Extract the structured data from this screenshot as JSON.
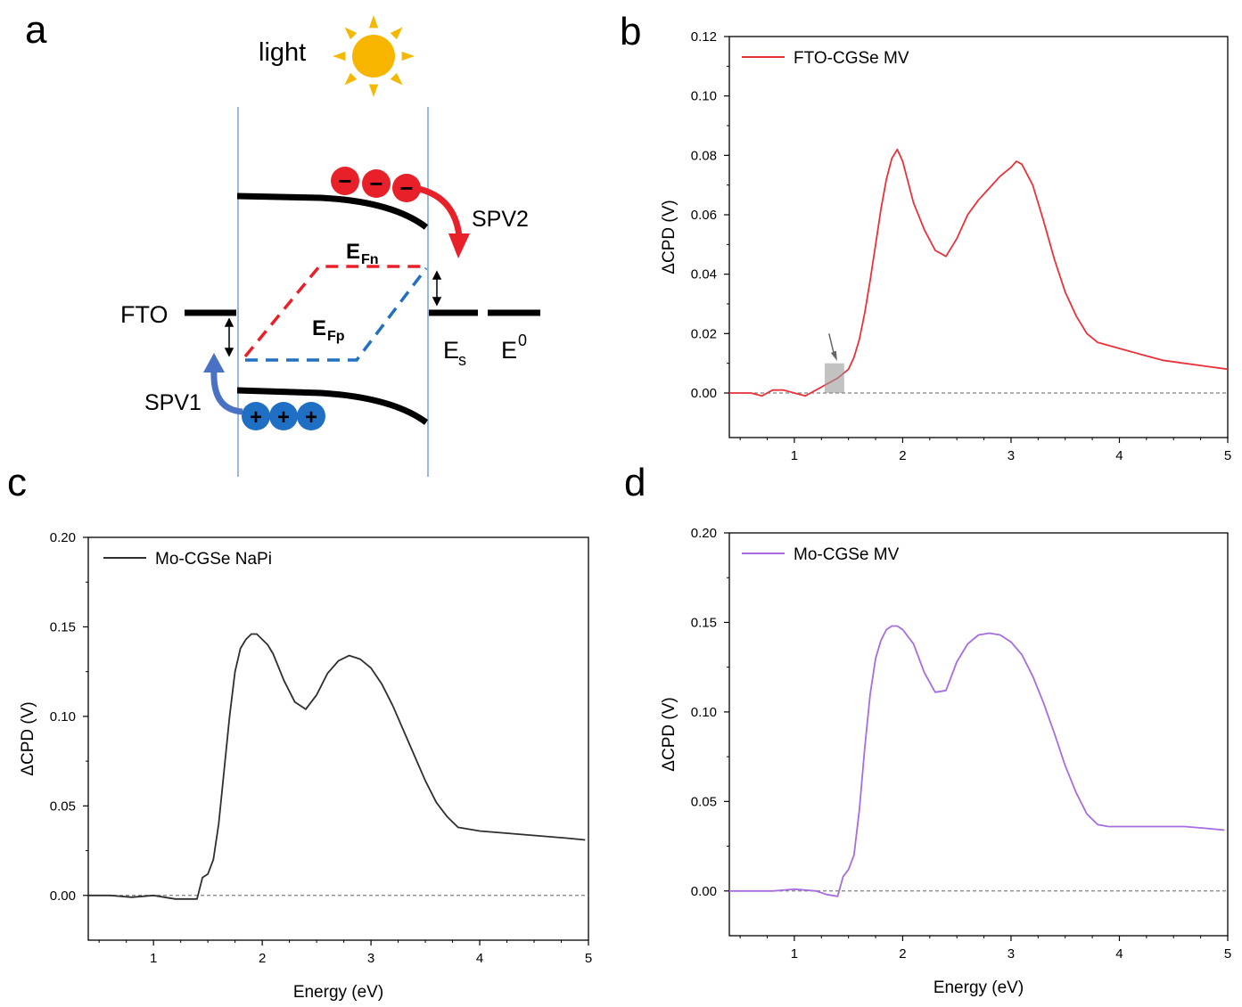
{
  "panels": {
    "a": "a",
    "b": "b",
    "c": "c",
    "d": "d"
  },
  "diagram": {
    "light": "light",
    "spv1": "SPV1",
    "spv2": "SPV2",
    "fto": "FTO",
    "efn_main": "E",
    "efn_sub": "Fn",
    "efp_main": "E",
    "efp_sub": "Fp",
    "es_main": "E",
    "es_sub": "s",
    "e0_main": "E",
    "e0_sup": "0",
    "minus": "−",
    "plus": "+",
    "colors": {
      "electron": "#e8202a",
      "hole": "#1f6fc5",
      "efn_line": "#e8202a",
      "efp_line": "#2470c0",
      "sun": "#f7b500",
      "sun_rays": "#f5b800",
      "spv1_arrow": "#4a72c4",
      "spv2_arrow": "#e8202a",
      "vline": "#7aa0d6"
    }
  },
  "chart_data": [
    {
      "panel": "b",
      "type": "line",
      "xlabel": "",
      "ylabel": "ΔCPD (V)",
      "xlim": [
        0.4,
        5.0
      ],
      "ylim": [
        -0.015,
        0.12
      ],
      "xticks": [
        "1",
        "2",
        "3",
        "4",
        "5"
      ],
      "yticks": [
        "0.00",
        "0.02",
        "0.04",
        "0.06",
        "0.08",
        "0.10",
        "0.12"
      ],
      "color": "#e8323a",
      "series": [
        {
          "name": "FTO-CGSe MV",
          "x": [
            0.4,
            0.6,
            0.7,
            0.8,
            0.9,
            1.0,
            1.1,
            1.15,
            1.2,
            1.3,
            1.4,
            1.5,
            1.55,
            1.6,
            1.65,
            1.7,
            1.75,
            1.8,
            1.85,
            1.9,
            1.95,
            2.0,
            2.05,
            2.1,
            2.2,
            2.3,
            2.4,
            2.5,
            2.6,
            2.7,
            2.8,
            2.9,
            3.0,
            3.05,
            3.1,
            3.2,
            3.3,
            3.4,
            3.5,
            3.6,
            3.7,
            3.8,
            4.0,
            4.2,
            4.4,
            4.6,
            4.8,
            5.0
          ],
          "y": [
            0.0,
            0.0,
            -0.001,
            0.001,
            0.001,
            0.0,
            -0.001,
            0.0,
            0.001,
            0.003,
            0.005,
            0.008,
            0.012,
            0.018,
            0.027,
            0.038,
            0.05,
            0.062,
            0.072,
            0.079,
            0.082,
            0.078,
            0.071,
            0.064,
            0.055,
            0.048,
            0.046,
            0.052,
            0.06,
            0.065,
            0.069,
            0.073,
            0.076,
            0.078,
            0.077,
            0.07,
            0.058,
            0.045,
            0.034,
            0.026,
            0.02,
            0.017,
            0.015,
            0.013,
            0.011,
            0.01,
            0.009,
            0.008
          ]
        }
      ]
    },
    {
      "panel": "c",
      "type": "line",
      "xlabel": "Energy (eV)",
      "ylabel": "ΔCPD (V)",
      "xlim": [
        0.4,
        5.0
      ],
      "ylim": [
        -0.025,
        0.2
      ],
      "xticks": [
        "1",
        "2",
        "3",
        "4",
        "5"
      ],
      "yticks": [
        "0.00",
        "0.05",
        "0.10",
        "0.15",
        "0.20"
      ],
      "color": "#2f2f2f",
      "series": [
        {
          "name": "Mo-CGSe NaPi",
          "x": [
            0.4,
            0.6,
            0.8,
            1.0,
            1.2,
            1.3,
            1.4,
            1.45,
            1.5,
            1.55,
            1.6,
            1.65,
            1.7,
            1.75,
            1.8,
            1.85,
            1.9,
            1.95,
            2.0,
            2.05,
            2.1,
            2.2,
            2.3,
            2.4,
            2.5,
            2.6,
            2.7,
            2.8,
            2.9,
            3.0,
            3.1,
            3.2,
            3.3,
            3.4,
            3.5,
            3.6,
            3.7,
            3.8,
            4.0,
            4.2,
            4.4,
            4.6,
            4.8,
            4.97
          ],
          "y": [
            0.0,
            0.0,
            -0.001,
            0.0,
            -0.002,
            -0.002,
            -0.002,
            0.01,
            0.012,
            0.02,
            0.04,
            0.07,
            0.1,
            0.125,
            0.138,
            0.143,
            0.146,
            0.146,
            0.143,
            0.14,
            0.135,
            0.12,
            0.108,
            0.104,
            0.112,
            0.124,
            0.131,
            0.134,
            0.132,
            0.127,
            0.118,
            0.106,
            0.092,
            0.078,
            0.064,
            0.052,
            0.044,
            0.038,
            0.036,
            0.035,
            0.034,
            0.033,
            0.032,
            0.031
          ]
        }
      ]
    },
    {
      "panel": "d",
      "type": "line",
      "xlabel": "Energy (eV)",
      "ylabel": "ΔCPD (V)",
      "xlim": [
        0.4,
        5.0
      ],
      "ylim": [
        -0.025,
        0.2
      ],
      "xticks": [
        "1",
        "2",
        "3",
        "4",
        "5"
      ],
      "yticks": [
        "0.00",
        "0.05",
        "0.10",
        "0.15",
        "0.20"
      ],
      "color": "#a56de0",
      "series": [
        {
          "name": "Mo-CGSe MV",
          "x": [
            0.4,
            0.6,
            0.8,
            1.0,
            1.2,
            1.3,
            1.4,
            1.45,
            1.5,
            1.55,
            1.6,
            1.65,
            1.7,
            1.75,
            1.8,
            1.85,
            1.9,
            1.95,
            2.0,
            2.05,
            2.1,
            2.2,
            2.3,
            2.4,
            2.5,
            2.6,
            2.7,
            2.8,
            2.9,
            3.0,
            3.1,
            3.2,
            3.3,
            3.4,
            3.5,
            3.6,
            3.7,
            3.8,
            3.9,
            4.0,
            4.2,
            4.4,
            4.6,
            4.8,
            4.97
          ],
          "y": [
            0.0,
            0.0,
            0.0,
            0.001,
            0.0,
            -0.002,
            -0.003,
            0.008,
            0.012,
            0.02,
            0.045,
            0.08,
            0.11,
            0.13,
            0.14,
            0.146,
            0.148,
            0.148,
            0.146,
            0.142,
            0.138,
            0.122,
            0.111,
            0.112,
            0.128,
            0.138,
            0.143,
            0.144,
            0.143,
            0.139,
            0.132,
            0.12,
            0.105,
            0.088,
            0.07,
            0.055,
            0.043,
            0.037,
            0.036,
            0.036,
            0.036,
            0.036,
            0.036,
            0.035,
            0.034
          ]
        }
      ]
    }
  ]
}
